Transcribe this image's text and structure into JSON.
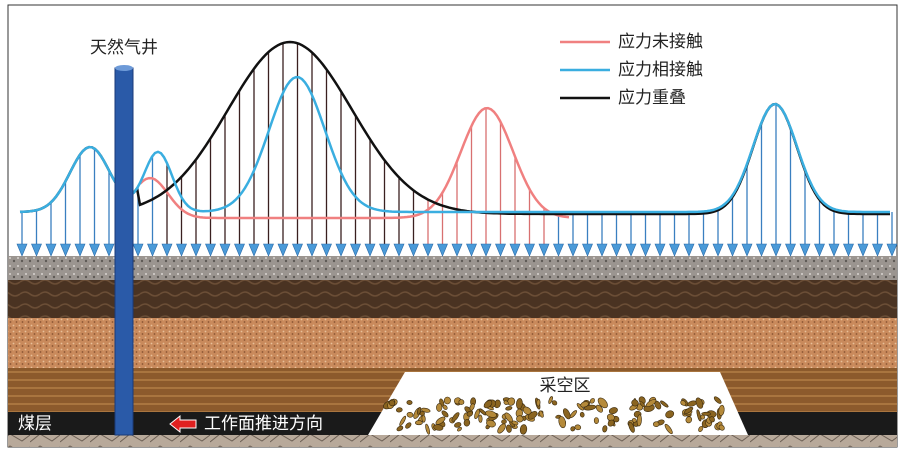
{
  "well_label": "天然气井",
  "legend": [
    "应力未接触",
    "应力相接触",
    "应力重叠"
  ],
  "goaf_label": "采空区",
  "coal_seam_label": "煤层",
  "advance_label": "工作面推进方向"
}
